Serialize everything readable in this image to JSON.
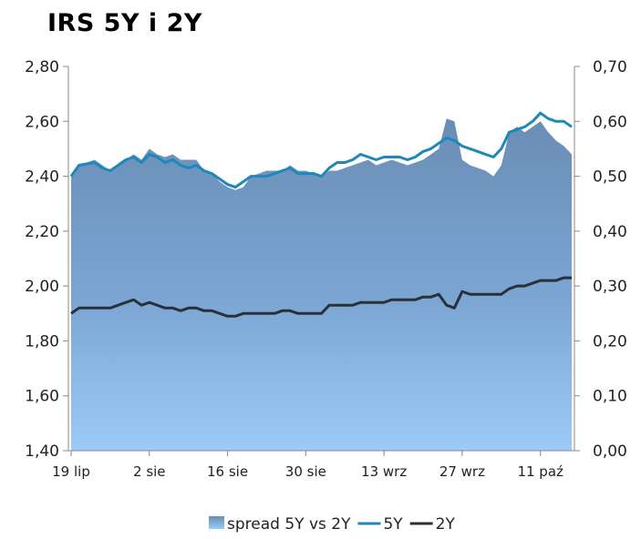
{
  "chart_data": {
    "type": "line",
    "title": "IRS 5Y i 2Y",
    "y_left": {
      "min": 1.4,
      "max": 2.8,
      "ticks": [
        "1,40",
        "1,60",
        "1,80",
        "2,00",
        "2,20",
        "2,40",
        "2,60",
        "2,80"
      ]
    },
    "y_right": {
      "min": 0.0,
      "max": 0.7,
      "ticks": [
        "0,00",
        "0,10",
        "0,20",
        "0,30",
        "0,40",
        "0,50",
        "0,60",
        "0,70"
      ]
    },
    "x_range": [
      0,
      64
    ],
    "x_ticks": [
      {
        "x": 0,
        "label": "19 lip"
      },
      {
        "x": 10,
        "label": "2 sie"
      },
      {
        "x": 20,
        "label": "16 sie"
      },
      {
        "x": 30,
        "label": "30 sie"
      },
      {
        "x": 40,
        "label": "13 wrz"
      },
      {
        "x": 50,
        "label": "27 wrz"
      },
      {
        "x": 60,
        "label": "11 paź"
      }
    ],
    "legend_position": "bottom",
    "grid": false,
    "series": [
      {
        "name": "spread 5Y vs 2Y",
        "kind": "area",
        "axis": "right",
        "color": "#6f93bd",
        "points": [
          [
            0,
            0.5
          ],
          [
            1,
            0.52
          ],
          [
            3,
            0.53
          ],
          [
            4,
            0.52
          ],
          [
            5,
            0.51
          ],
          [
            6,
            0.52
          ],
          [
            7,
            0.53
          ],
          [
            8,
            0.54
          ],
          [
            9,
            0.53
          ],
          [
            10,
            0.55
          ],
          [
            11,
            0.54
          ],
          [
            12,
            0.535
          ],
          [
            13,
            0.54
          ],
          [
            14,
            0.53
          ],
          [
            15,
            0.53
          ],
          [
            16,
            0.53
          ],
          [
            17,
            0.51
          ],
          [
            18,
            0.505
          ],
          [
            19,
            0.49
          ],
          [
            20,
            0.48
          ],
          [
            21,
            0.475
          ],
          [
            22,
            0.48
          ],
          [
            23,
            0.5
          ],
          [
            24,
            0.505
          ],
          [
            25,
            0.51
          ],
          [
            26,
            0.51
          ],
          [
            27,
            0.51
          ],
          [
            28,
            0.52
          ],
          [
            29,
            0.51
          ],
          [
            30,
            0.51
          ],
          [
            31,
            0.505
          ],
          [
            32,
            0.5
          ],
          [
            33,
            0.51
          ],
          [
            34,
            0.51
          ],
          [
            35,
            0.515
          ],
          [
            36,
            0.52
          ],
          [
            37,
            0.525
          ],
          [
            38,
            0.53
          ],
          [
            39,
            0.52
          ],
          [
            40,
            0.525
          ],
          [
            41,
            0.53
          ],
          [
            42,
            0.525
          ],
          [
            43,
            0.52
          ],
          [
            44,
            0.525
          ],
          [
            45,
            0.53
          ],
          [
            46,
            0.54
          ],
          [
            47,
            0.55
          ],
          [
            48,
            0.605
          ],
          [
            49,
            0.6
          ],
          [
            50,
            0.53
          ],
          [
            51,
            0.52
          ],
          [
            52,
            0.515
          ],
          [
            53,
            0.51
          ],
          [
            54,
            0.5
          ],
          [
            55,
            0.52
          ],
          [
            56,
            0.58
          ],
          [
            57,
            0.59
          ],
          [
            58,
            0.58
          ],
          [
            59,
            0.59
          ],
          [
            60,
            0.6
          ],
          [
            61,
            0.58
          ],
          [
            62,
            0.565
          ],
          [
            63,
            0.555
          ],
          [
            64,
            0.54
          ]
        ]
      },
      {
        "name": "5Y",
        "kind": "line",
        "axis": "left",
        "color": "#1e88b8",
        "points": [
          [
            0,
            2.4
          ],
          [
            1,
            2.44
          ],
          [
            3,
            2.45
          ],
          [
            4,
            2.43
          ],
          [
            5,
            2.42
          ],
          [
            6,
            2.44
          ],
          [
            7,
            2.46
          ],
          [
            8,
            2.47
          ],
          [
            9,
            2.45
          ],
          [
            10,
            2.48
          ],
          [
            11,
            2.47
          ],
          [
            12,
            2.45
          ],
          [
            13,
            2.46
          ],
          [
            14,
            2.44
          ],
          [
            15,
            2.43
          ],
          [
            16,
            2.44
          ],
          [
            17,
            2.42
          ],
          [
            18,
            2.41
          ],
          [
            19,
            2.39
          ],
          [
            20,
            2.37
          ],
          [
            21,
            2.36
          ],
          [
            22,
            2.38
          ],
          [
            23,
            2.4
          ],
          [
            24,
            2.4
          ],
          [
            25,
            2.4
          ],
          [
            26,
            2.41
          ],
          [
            27,
            2.42
          ],
          [
            28,
            2.43
          ],
          [
            29,
            2.41
          ],
          [
            30,
            2.41
          ],
          [
            31,
            2.41
          ],
          [
            32,
            2.4
          ],
          [
            33,
            2.43
          ],
          [
            34,
            2.45
          ],
          [
            35,
            2.45
          ],
          [
            36,
            2.46
          ],
          [
            37,
            2.48
          ],
          [
            38,
            2.47
          ],
          [
            39,
            2.46
          ],
          [
            40,
            2.47
          ],
          [
            41,
            2.47
          ],
          [
            42,
            2.47
          ],
          [
            43,
            2.46
          ],
          [
            44,
            2.47
          ],
          [
            45,
            2.49
          ],
          [
            46,
            2.5
          ],
          [
            47,
            2.52
          ],
          [
            48,
            2.54
          ],
          [
            49,
            2.53
          ],
          [
            50,
            2.51
          ],
          [
            51,
            2.5
          ],
          [
            52,
            2.49
          ],
          [
            53,
            2.48
          ],
          [
            54,
            2.47
          ],
          [
            55,
            2.5
          ],
          [
            56,
            2.56
          ],
          [
            57,
            2.57
          ],
          [
            58,
            2.58
          ],
          [
            59,
            2.6
          ],
          [
            60,
            2.63
          ],
          [
            61,
            2.61
          ],
          [
            62,
            2.6
          ],
          [
            63,
            2.6
          ],
          [
            64,
            2.58
          ]
        ]
      },
      {
        "name": "2Y",
        "kind": "line",
        "axis": "left",
        "color": "#2a3038",
        "points": [
          [
            0,
            1.9
          ],
          [
            1,
            1.92
          ],
          [
            3,
            1.92
          ],
          [
            4,
            1.92
          ],
          [
            5,
            1.92
          ],
          [
            6,
            1.93
          ],
          [
            7,
            1.94
          ],
          [
            8,
            1.95
          ],
          [
            9,
            1.93
          ],
          [
            10,
            1.94
          ],
          [
            11,
            1.93
          ],
          [
            12,
            1.92
          ],
          [
            13,
            1.92
          ],
          [
            14,
            1.91
          ],
          [
            15,
            1.92
          ],
          [
            16,
            1.92
          ],
          [
            17,
            1.91
          ],
          [
            18,
            1.91
          ],
          [
            19,
            1.9
          ],
          [
            20,
            1.89
          ],
          [
            21,
            1.89
          ],
          [
            22,
            1.9
          ],
          [
            23,
            1.9
          ],
          [
            24,
            1.9
          ],
          [
            25,
            1.9
          ],
          [
            26,
            1.9
          ],
          [
            27,
            1.91
          ],
          [
            28,
            1.91
          ],
          [
            29,
            1.9
          ],
          [
            30,
            1.9
          ],
          [
            31,
            1.9
          ],
          [
            32,
            1.9
          ],
          [
            33,
            1.93
          ],
          [
            34,
            1.93
          ],
          [
            35,
            1.93
          ],
          [
            36,
            1.93
          ],
          [
            37,
            1.94
          ],
          [
            38,
            1.94
          ],
          [
            39,
            1.94
          ],
          [
            40,
            1.94
          ],
          [
            41,
            1.95
          ],
          [
            42,
            1.95
          ],
          [
            43,
            1.95
          ],
          [
            44,
            1.95
          ],
          [
            45,
            1.96
          ],
          [
            46,
            1.96
          ],
          [
            47,
            1.97
          ],
          [
            48,
            1.93
          ],
          [
            49,
            1.92
          ],
          [
            50,
            1.98
          ],
          [
            51,
            1.97
          ],
          [
            52,
            1.97
          ],
          [
            53,
            1.97
          ],
          [
            54,
            1.97
          ],
          [
            55,
            1.97
          ],
          [
            56,
            1.99
          ],
          [
            57,
            2.0
          ],
          [
            58,
            2.0
          ],
          [
            59,
            2.01
          ],
          [
            60,
            2.02
          ],
          [
            61,
            2.02
          ],
          [
            62,
            2.02
          ],
          [
            63,
            2.03
          ],
          [
            64,
            2.03
          ]
        ]
      }
    ]
  }
}
